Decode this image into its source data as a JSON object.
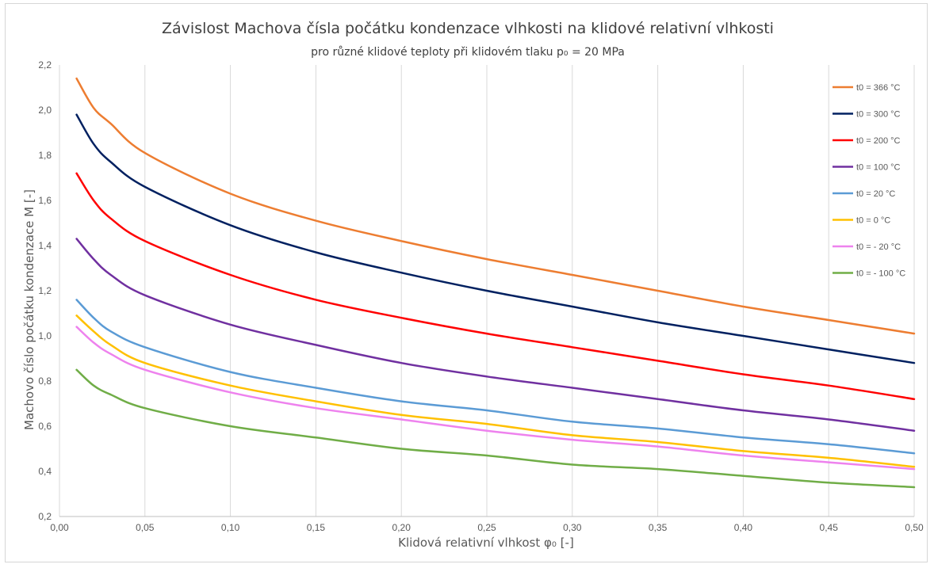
{
  "chart_data": {
    "type": "line",
    "title": "Závislost Machova čísla počátku kondenzace vlhkosti na klidové relativní vlhkosti",
    "subtitle": "pro různé klidové teploty při klidovém tlaku p₀ = 20 MPa",
    "xlabel": "Klidová relativní vlhkost φ₀ [-]",
    "ylabel": "Machovo číslo počátku kondenzace M [-]",
    "xlim": [
      0,
      0.5
    ],
    "ylim": [
      0.2,
      2.2
    ],
    "x_ticks": [
      "0,00",
      "0,05",
      "0,10",
      "0,15",
      "0,20",
      "0,25",
      "0,30",
      "0,35",
      "0,40",
      "0,45",
      "0,50"
    ],
    "y_ticks": [
      "0,2",
      "0,4",
      "0,6",
      "0,8",
      "1,0",
      "1,2",
      "1,4",
      "1,6",
      "1,8",
      "2,0",
      "2,2"
    ],
    "grid": "vertical",
    "legend_position": "right",
    "x": [
      0.01,
      0.02,
      0.03,
      0.05,
      0.1,
      0.15,
      0.2,
      0.25,
      0.3,
      0.35,
      0.4,
      0.45,
      0.5
    ],
    "series": [
      {
        "name": "t0 = 366 °C",
        "color": "#ED7D31",
        "values": [
          2.14,
          2.01,
          1.94,
          1.81,
          1.63,
          1.51,
          1.42,
          1.34,
          1.27,
          1.2,
          1.13,
          1.07,
          1.01
        ]
      },
      {
        "name": "t0 = 300 °C",
        "color": "#002060",
        "values": [
          1.98,
          1.85,
          1.77,
          1.66,
          1.49,
          1.37,
          1.28,
          1.2,
          1.13,
          1.06,
          1.0,
          0.94,
          0.88
        ]
      },
      {
        "name": "t0 = 200 °C",
        "color": "#FF0000",
        "values": [
          1.72,
          1.6,
          1.52,
          1.42,
          1.27,
          1.16,
          1.08,
          1.01,
          0.95,
          0.89,
          0.83,
          0.78,
          0.72
        ]
      },
      {
        "name": "t0 = 100 °C",
        "color": "#7030A0",
        "values": [
          1.43,
          1.34,
          1.27,
          1.18,
          1.05,
          0.96,
          0.88,
          0.82,
          0.77,
          0.72,
          0.67,
          0.63,
          0.58
        ]
      },
      {
        "name": "t0 = 20 °C",
        "color": "#5B9BD5",
        "values": [
          1.16,
          1.08,
          1.02,
          0.95,
          0.84,
          0.77,
          0.71,
          0.67,
          0.62,
          0.59,
          0.55,
          0.52,
          0.48
        ]
      },
      {
        "name": "t0 = 0 °C",
        "color": "#FFC000",
        "values": [
          1.09,
          1.02,
          0.96,
          0.88,
          0.78,
          0.71,
          0.65,
          0.61,
          0.56,
          0.53,
          0.49,
          0.46,
          0.42
        ]
      },
      {
        "name": "t0 = - 20 °C",
        "color": "#EE82EE",
        "values": [
          1.04,
          0.97,
          0.92,
          0.85,
          0.75,
          0.68,
          0.63,
          0.58,
          0.54,
          0.51,
          0.47,
          0.44,
          0.41
        ]
      },
      {
        "name": "t0 = - 100 °C",
        "color": "#70AD47",
        "values": [
          0.85,
          0.78,
          0.74,
          0.68,
          0.6,
          0.55,
          0.5,
          0.47,
          0.43,
          0.41,
          0.38,
          0.35,
          0.33
        ]
      }
    ]
  }
}
